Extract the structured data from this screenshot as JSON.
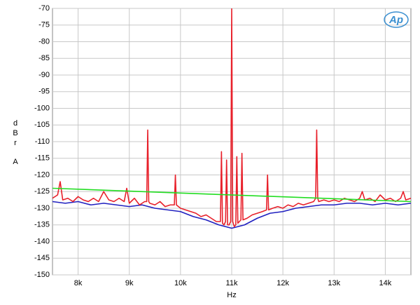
{
  "chart_data": {
    "type": "line",
    "xlabel": "Hz",
    "ylabel": [
      "d",
      "B",
      "r",
      "A"
    ],
    "logo": "Ap",
    "xlim": [
      7500,
      14500
    ],
    "ylim": [
      -150,
      -70
    ],
    "xticks": [
      {
        "value": 8000,
        "label": "8k"
      },
      {
        "value": 9000,
        "label": "9k"
      },
      {
        "value": 10000,
        "label": "10k"
      },
      {
        "value": 11000,
        "label": "11k"
      },
      {
        "value": 12000,
        "label": "12k"
      },
      {
        "value": 13000,
        "label": "13k"
      },
      {
        "value": 14000,
        "label": "14k"
      }
    ],
    "yticks": [
      -70,
      -75,
      -80,
      -85,
      -90,
      -95,
      -100,
      -105,
      -110,
      -115,
      -120,
      -125,
      -130,
      -135,
      -140,
      -145,
      -150
    ],
    "grid": true,
    "series": [
      {
        "color": "#2020c0",
        "x": [
          7500,
          7750,
          8000,
          8250,
          8500,
          8750,
          9000,
          9250,
          9500,
          9750,
          10000,
          10250,
          10500,
          10750,
          11000,
          11250,
          11500,
          11750,
          12000,
          12250,
          12500,
          12750,
          13000,
          13250,
          13500,
          13750,
          14000,
          14250,
          14500
        ],
        "values": [
          -128,
          -128.5,
          -128,
          -129,
          -128.5,
          -129,
          -129.5,
          -129,
          -130,
          -130.5,
          -131,
          -132.5,
          -133.5,
          -135,
          -136,
          -135,
          -133,
          -131.5,
          -131,
          -130,
          -129.5,
          -129,
          -129,
          -128.5,
          -128.5,
          -129,
          -128.5,
          -129,
          -128.5
        ]
      },
      {
        "color": "#e8202a",
        "x": [
          7500,
          7600,
          7650,
          7700,
          7800,
          7900,
          8000,
          8100,
          8200,
          8300,
          8400,
          8500,
          8600,
          8700,
          8800,
          8900,
          8950,
          9000,
          9100,
          9200,
          9300,
          9340,
          9360,
          9380,
          9400,
          9500,
          9600,
          9700,
          9800,
          9880,
          9900,
          9920,
          10000,
          10100,
          10200,
          10300,
          10400,
          10500,
          10600,
          10700,
          10780,
          10800,
          10820,
          10850,
          10880,
          10900,
          10920,
          10950,
          10980,
          11000,
          11020,
          11050,
          11080,
          11100,
          11120,
          11150,
          11180,
          11200,
          11220,
          11300,
          11400,
          11500,
          11600,
          11680,
          11700,
          11720,
          11800,
          11900,
          12000,
          12100,
          12200,
          12300,
          12400,
          12500,
          12600,
          12640,
          12660,
          12680,
          12700,
          12800,
          12900,
          13000,
          13100,
          13200,
          13300,
          13400,
          13500,
          13550,
          13600,
          13700,
          13800,
          13900,
          14000,
          14100,
          14200,
          14300,
          14350,
          14400,
          14500
        ],
        "values": [
          -127,
          -126,
          -122,
          -127.5,
          -127,
          -128,
          -126.5,
          -127.5,
          -128,
          -127,
          -128,
          -125,
          -127.5,
          -128,
          -127,
          -128,
          -124,
          -128.5,
          -127,
          -129,
          -128,
          -128,
          -106.5,
          -128,
          -128.5,
          -129,
          -128,
          -129.5,
          -129,
          -129,
          -120,
          -129,
          -130,
          -130.5,
          -131,
          -131.5,
          -132.5,
          -132,
          -133,
          -134,
          -134,
          -113,
          -134.5,
          -135,
          -134,
          -115.5,
          -135,
          -135,
          -134,
          -70,
          -134,
          -135.5,
          -135,
          -114.5,
          -134.5,
          -134,
          -133.5,
          -113.5,
          -133.5,
          -133,
          -132,
          -131.5,
          -131,
          -130.5,
          -120,
          -130.5,
          -130,
          -129.5,
          -130,
          -129,
          -129.5,
          -128.5,
          -129,
          -128.5,
          -128,
          -127,
          -106.5,
          -127,
          -128,
          -127.5,
          -128,
          -127.5,
          -128,
          -127,
          -127.5,
          -128,
          -127,
          -125,
          -127.5,
          -127,
          -128,
          -126,
          -127.5,
          -127,
          -128,
          -127,
          -125,
          -127.5,
          -127
        ]
      },
      {
        "color": "#22dd22",
        "x": [
          7500,
          14500
        ],
        "values": [
          -124,
          -128
        ]
      }
    ]
  }
}
